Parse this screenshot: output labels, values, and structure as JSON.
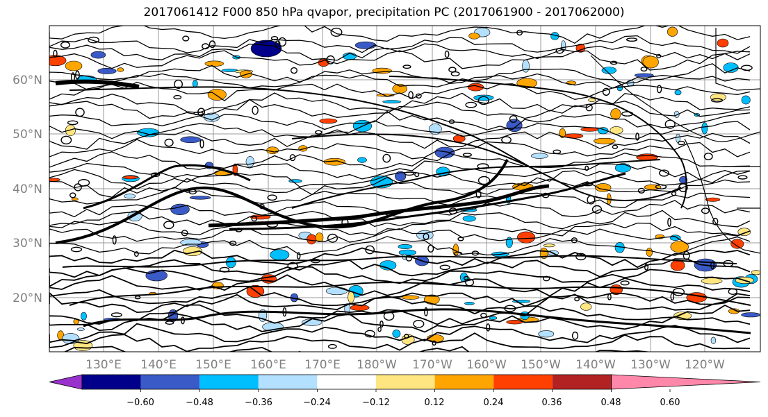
{
  "title": "2017061412 F000 850 hPa qvapor, precipitation PC (2017061900 - 2017062000)",
  "lat_labels": [
    "60°N",
    "50°N",
    "40°N",
    "30°N",
    "20°N"
  ],
  "lon_labels": [
    "130°E",
    "140°E",
    "150°E",
    "160°E",
    "170°E",
    "180°W",
    "170°W",
    "160°W",
    "150°W",
    "140°W",
    "130°W",
    "120°W"
  ],
  "colorbar": {
    "colors": [
      "#9932cc",
      "#00008b",
      "#3a5bc7",
      "#00bfff",
      "#b3e0ff",
      "#ffffff",
      "#ffe680",
      "#ffa500",
      "#ff4000",
      "#b22222",
      "#ff88aa"
    ],
    "tick_labels": [
      "−0.60",
      "−0.48",
      "−0.36",
      "−0.24",
      "−0.12",
      "0.12",
      "0.24",
      "0.36",
      "0.48",
      "0.60"
    ]
  },
  "colors": {
    "label_gray": "#808080",
    "grid": "#9a9a9a",
    "contour": "#000000"
  }
}
